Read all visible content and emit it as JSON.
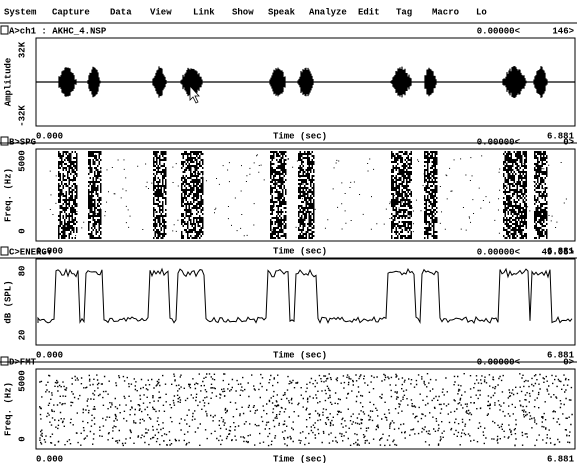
{
  "menu": [
    "System",
    "Capture",
    "Data",
    "View",
    "Link",
    "Show",
    "Speak",
    "Analyze",
    "Edit",
    "Tag",
    "Macro",
    "Lo"
  ],
  "panels": [
    {
      "title": "A>ch1 : AKHC_4.NSP",
      "cursor": "0.00000<",
      "value": "146>",
      "ylabel": "Amplitude",
      "ytop": "32K",
      "ybottom": "-32K",
      "xstart": "0.000",
      "xlabel": "Time (sec)",
      "xend": "6.881"
    },
    {
      "title": "B>SPG",
      "cursor": "0.00000<",
      "value": "0>",
      "ylabel": "Freq. (Hz)",
      "ytop": "5000",
      "ybottom": "0",
      "xstart": "0.000",
      "xlabel": "Time (sec)",
      "xend": "6.881"
    },
    {
      "title": "C>ENERGY",
      "cursor": "0.00000<",
      "value": "49.05>",
      "ylabel": "dB (SPL)",
      "ytop": "80",
      "ybottom": "20",
      "xstart": "0.000",
      "xlabel": "Time (sec)",
      "xend": "6.881"
    },
    {
      "title": "D>FMT",
      "cursor": "0.00000<",
      "value": "0>",
      "ylabel": "Freq. (Hz)",
      "ytop": "5000",
      "ybottom": "0",
      "xstart": "0.000",
      "xlabel": "Time (sec)",
      "xend": "6.881"
    }
  ]
}
